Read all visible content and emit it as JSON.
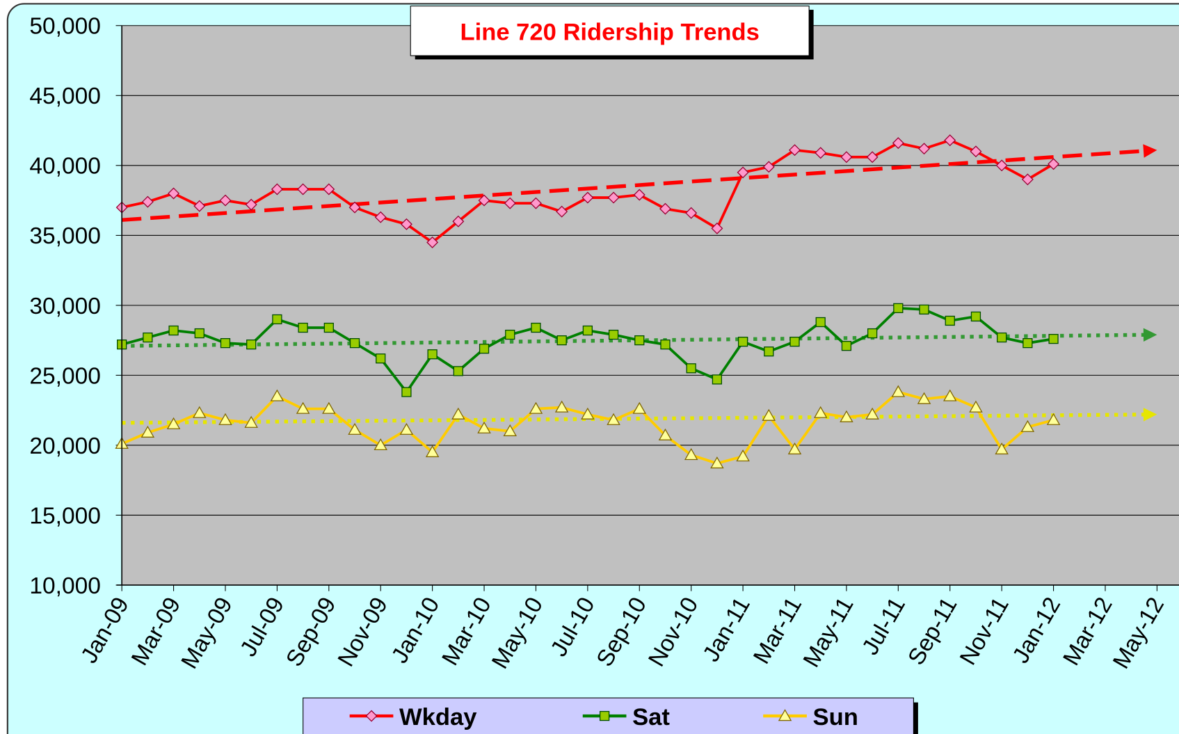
{
  "chart_data": {
    "type": "line",
    "title": "Line 720 Ridership Trends",
    "categories": [
      "Jan-09",
      null,
      "Mar-09",
      null,
      "May-09",
      null,
      "Jul-09",
      null,
      "Sep-09",
      null,
      "Nov-09",
      null,
      "Jan-10",
      null,
      "Mar-10",
      null,
      "May-10",
      null,
      "Jul-10",
      null,
      "Sep-10",
      null,
      "Nov-10",
      null,
      "Jan-11",
      null,
      "Mar-11",
      null,
      "May-11",
      null,
      "Jul-11",
      null,
      "Sep-11",
      null,
      "Nov-11",
      null,
      "Jan-12",
      null,
      "Mar-12",
      null,
      "May-12"
    ],
    "series": [
      {
        "name": "Wkday",
        "color": "#ff0000",
        "marker": "diamond",
        "marker_color": "#ff99cc",
        "trend_style": "dashed",
        "values": [
          37000,
          37400,
          38000,
          37100,
          37500,
          37200,
          38300,
          38300,
          38300,
          37000,
          36300,
          35800,
          34500,
          36000,
          37500,
          37300,
          37300,
          36700,
          37700,
          37700,
          37900,
          36900,
          36600,
          35500,
          39500,
          39900,
          41100,
          40900,
          40600,
          40600,
          41600,
          41200,
          41800,
          41000,
          40000,
          39000,
          40100,
          null,
          null,
          null,
          null
        ],
        "trend": [
          36100,
          41100
        ]
      },
      {
        "name": "Sat",
        "color": "#008000",
        "marker": "square",
        "marker_color": "#99cc00",
        "trend_style": "dotted",
        "trend_color": "#339933",
        "values": [
          27200,
          27700,
          28200,
          28000,
          27300,
          27200,
          29000,
          28400,
          28400,
          27300,
          26200,
          23800,
          26500,
          25300,
          26900,
          27900,
          28400,
          27500,
          28200,
          27900,
          27500,
          27200,
          25500,
          24700,
          27400,
          26700,
          27400,
          28800,
          27100,
          28000,
          29800,
          29700,
          28900,
          29200,
          27700,
          27300,
          27600,
          null,
          null,
          null,
          null
        ],
        "trend": [
          27100,
          27900
        ]
      },
      {
        "name": "Sun",
        "color": "#ffcc00",
        "marker": "triangle",
        "marker_color": "#ffff99",
        "trend_style": "dotted",
        "trend_color": "#e6e600",
        "values": [
          20100,
          20900,
          21500,
          22300,
          21800,
          21600,
          23500,
          22600,
          22600,
          21100,
          20000,
          21100,
          19500,
          22200,
          21200,
          21000,
          22600,
          22700,
          22200,
          21800,
          22600,
          20700,
          19300,
          18700,
          19200,
          22100,
          19700,
          22300,
          22000,
          22200,
          23800,
          23300,
          23500,
          22700,
          19700,
          21300,
          21800,
          null,
          null,
          null,
          null
        ],
        "trend": [
          21600,
          22200
        ]
      }
    ],
    "ylim": [
      10000,
      50000
    ],
    "yticks": [
      {
        "value": 10000,
        "label": "10,000"
      },
      {
        "value": 15000,
        "label": "15,000"
      },
      {
        "value": 20000,
        "label": "20,000"
      },
      {
        "value": 25000,
        "label": "25,000"
      },
      {
        "value": 30000,
        "label": "30,000"
      },
      {
        "value": 35000,
        "label": "35,000"
      },
      {
        "value": 40000,
        "label": "40,000"
      },
      {
        "value": 45000,
        "label": "45,000"
      },
      {
        "value": 50000,
        "label": "50,000"
      }
    ],
    "grid": true
  }
}
